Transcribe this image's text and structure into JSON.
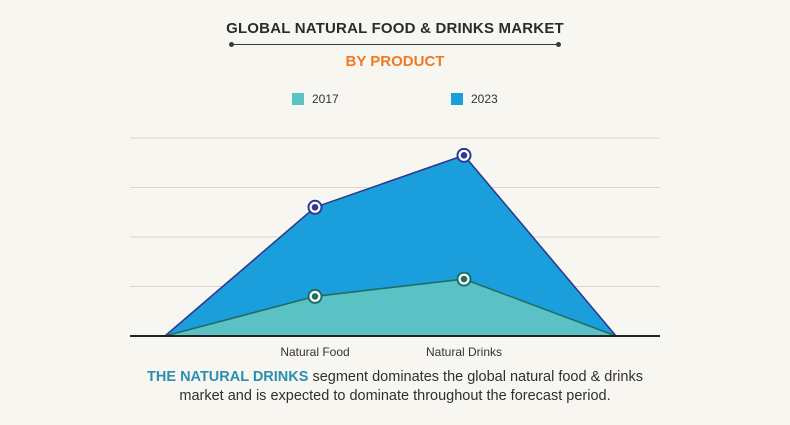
{
  "header": {
    "title": "GLOBAL NATURAL FOOD & DRINKS  MARKET",
    "subtitle": "BY PRODUCT"
  },
  "chart_data": {
    "type": "area",
    "categories": [
      "",
      "Natural Food",
      "Natural Drinks",
      ""
    ],
    "series": [
      {
        "name": "2023",
        "color": "#1a9fdc",
        "values": [
          0,
          2.6,
          3.65,
          0
        ]
      },
      {
        "name": "2017",
        "color": "#5ac2c4",
        "values": [
          0,
          0.8,
          1.15,
          0
        ]
      }
    ],
    "ylim": [
      0,
      4
    ],
    "grid": true,
    "legend_position": "top-center",
    "marker_categories": [
      1,
      2
    ]
  },
  "legend": [
    {
      "label": "2017",
      "color": "#5ac2c4"
    },
    {
      "label": "2023",
      "color": "#1a9fdc"
    }
  ],
  "footer": {
    "highlight": "THE NATURAL DRINKS",
    "text_line1": " segment dominates the global natural food & drinks",
    "text_line2": "market and is expected to dominate throughout the forecast period."
  }
}
